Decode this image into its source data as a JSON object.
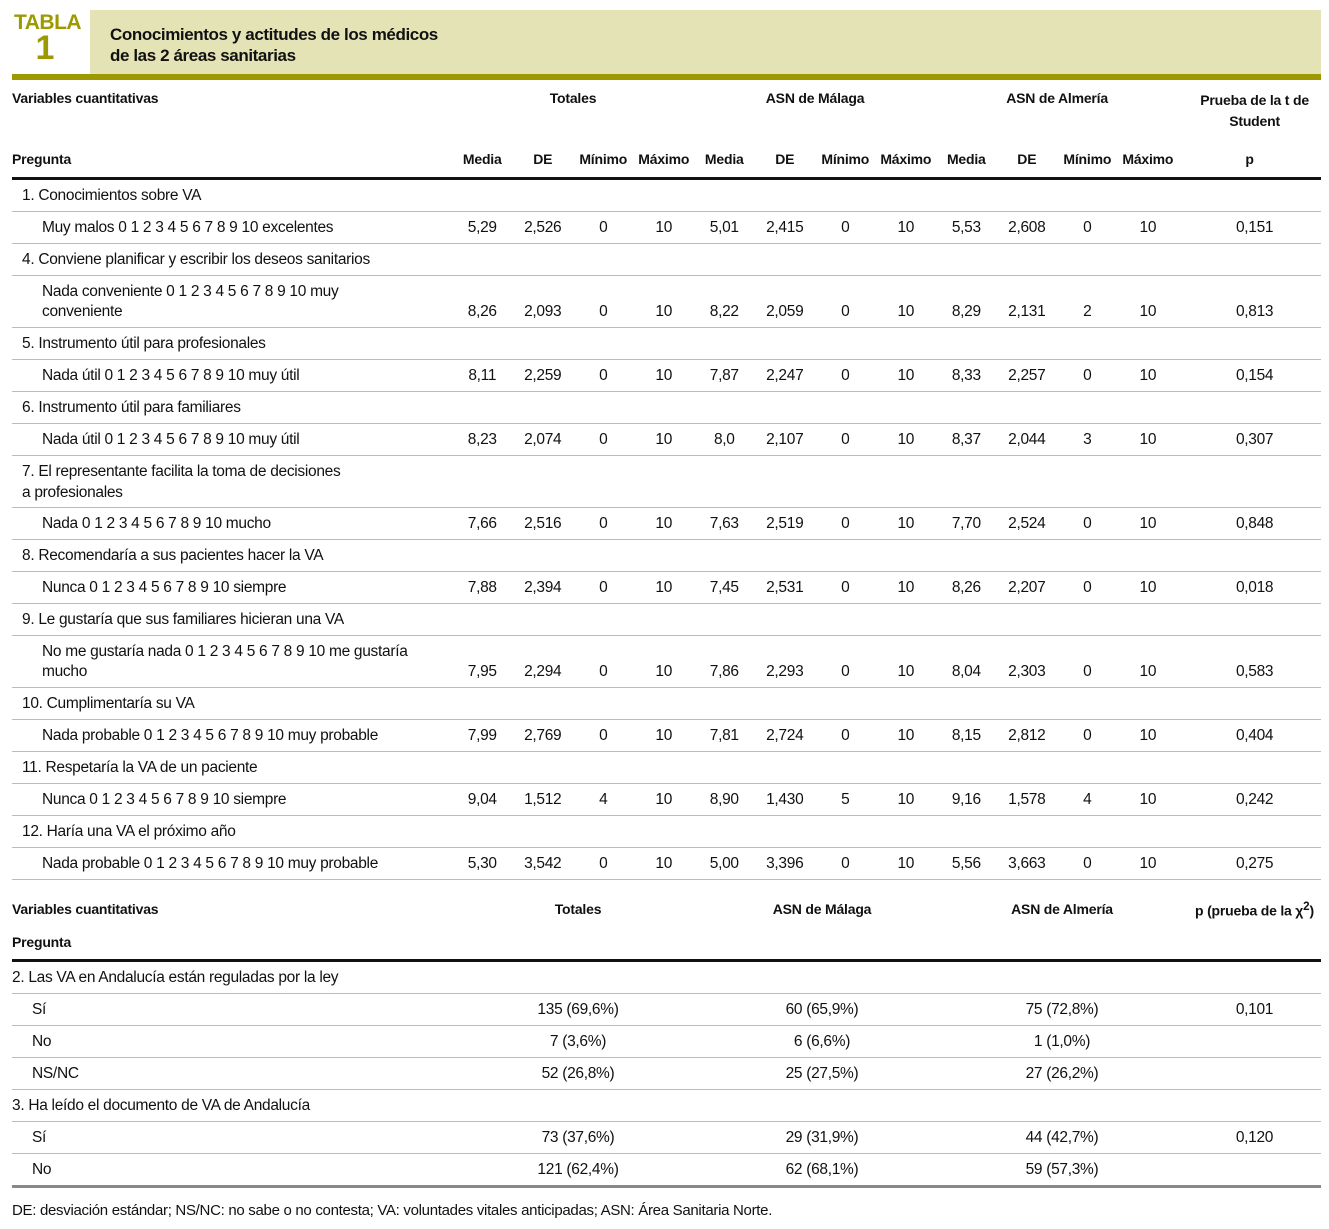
{
  "header": {
    "label": "TABLA",
    "number": "1",
    "title": "Conocimientos y actitudes de los médicos\nde las 2 áreas sanitarias"
  },
  "colors": {
    "accent": "#9c9a00",
    "band": "#e4e3b5"
  },
  "table1": {
    "section": "Variables cuantitativas",
    "groups": [
      "Totales",
      "ASN de Málaga",
      "ASN de Almería"
    ],
    "test": "Prueba de la t de Student",
    "pregunta": "Pregunta",
    "cols": [
      "Media",
      "DE",
      "Mínimo",
      "Máximo",
      "Media",
      "DE",
      "Mínimo",
      "Máximo",
      "Media",
      "DE",
      "Mínimo",
      "Máximo",
      "p"
    ],
    "rows": [
      {
        "q": "1. Conocimientos sobre VA",
        "item": "Muy malos 0 1 2 3 4 5 6 7 8 9 10 excelentes",
        "v": [
          "5,29",
          "2,526",
          "0",
          "10",
          "5,01",
          "2,415",
          "0",
          "10",
          "5,53",
          "2,608",
          "0",
          "10",
          "0,151"
        ]
      },
      {
        "q": "4. Conviene planificar y escribir los deseos sanitarios",
        "item": "Nada conveniente 0 1 2 3 4 5 6 7 8 9 10 muy\n conveniente",
        "v": [
          "8,26",
          "2,093",
          "0",
          "10",
          "8,22",
          "2,059",
          "0",
          "10",
          "8,29",
          "2,131",
          "2",
          "10",
          "0,813"
        ]
      },
      {
        "q": "5. Instrumento útil para profesionales",
        "item": "Nada útil 0 1 2 3 4 5 6 7 8 9 10 muy útil",
        "v": [
          "8,11",
          "2,259",
          "0",
          "10",
          "7,87",
          "2,247",
          "0",
          "10",
          "8,33",
          "2,257",
          "0",
          "10",
          "0,154"
        ]
      },
      {
        "q": "6. Instrumento útil para familiares",
        "item": "Nada útil 0 1 2 3 4 5 6 7 8 9 10 muy útil",
        "v": [
          "8,23",
          "2,074",
          "0",
          "10",
          "8,0",
          "2,107",
          "0",
          "10",
          "8,37",
          "2,044",
          "3",
          "10",
          "0,307"
        ]
      },
      {
        "q": "7. El representante facilita la toma de decisiones\n   a profesionales",
        "item": "Nada 0 1 2 3 4 5 6 7 8 9 10 mucho",
        "v": [
          "7,66",
          "2,516",
          "0",
          "10",
          "7,63",
          "2,519",
          "0",
          "10",
          "7,70",
          "2,524",
          "0",
          "10",
          "0,848"
        ]
      },
      {
        "q": "8. Recomendaría a sus pacientes hacer la VA",
        "item": "Nunca 0 1 2 3 4 5 6 7 8 9 10 siempre",
        "v": [
          "7,88",
          "2,394",
          "0",
          "10",
          "7,45",
          "2,531",
          "0",
          "10",
          "8,26",
          "2,207",
          "0",
          "10",
          "0,018"
        ]
      },
      {
        "q": "9. Le gustaría que sus familiares hicieran una VA",
        "item": "No me gustaría nada 0 1 2 3 4 5 6 7 8 9 10 me gustaría\nmucho",
        "v": [
          "7,95",
          "2,294",
          "0",
          "10",
          "7,86",
          "2,293",
          "0",
          "10",
          "8,04",
          "2,303",
          "0",
          "10",
          "0,583"
        ]
      },
      {
        "q": "10. Cumplimentaría su VA",
        "item": "Nada probable 0 1 2 3 4 5 6 7 8 9 10 muy probable",
        "v": [
          "7,99",
          "2,769",
          "0",
          "10",
          "7,81",
          "2,724",
          "0",
          "10",
          "8,15",
          "2,812",
          "0",
          "10",
          "0,404"
        ]
      },
      {
        "q": "11. Respetaría la VA de un paciente",
        "item": "Nunca 0 1 2 3 4 5 6 7 8 9 10 siempre",
        "v": [
          "9,04",
          "1,512",
          "4",
          "10",
          "8,90",
          "1,430",
          "5",
          "10",
          "9,16",
          "1,578",
          "4",
          "10",
          "0,242"
        ]
      },
      {
        "q": "12. Haría una VA el próximo año",
        "item": "Nada probable 0 1 2 3 4 5 6 7 8 9 10 muy probable",
        "v": [
          "5,30",
          "3,542",
          "0",
          "10",
          "5,00",
          "3,396",
          "0",
          "10",
          "5,56",
          "3,663",
          "0",
          "10",
          "0,275"
        ]
      }
    ]
  },
  "table2": {
    "section": "Variables cuantitativas",
    "groups": [
      "Totales",
      "ASN de Málaga",
      "ASN de Almería"
    ],
    "test": "p (prueba de la χ",
    "test_sup": "2",
    "test_end": ")",
    "pregunta": "Pregunta",
    "blocks": [
      {
        "q": "2. Las VA en Andalucía están reguladas por la ley",
        "rows": [
          {
            "label": "Sí",
            "v": [
              "135 (69,6%)",
              "60 (65,9%)",
              "75 (72,8%)",
              "0,101"
            ]
          },
          {
            "label": "No",
            "v": [
              "7 (3,6%)",
              "6 (6,6%)",
              "1 (1,0%)",
              ""
            ]
          },
          {
            "label": "NS/NC",
            "v": [
              "52 (26,8%)",
              "25 (27,5%)",
              "27 (26,2%)",
              ""
            ]
          }
        ]
      },
      {
        "q": "3. Ha leído el documento de VA de Andalucía",
        "rows": [
          {
            "label": "Sí",
            "v": [
              "73 (37,6%)",
              "29 (31,9%)",
              "44 (42,7%)",
              "0,120"
            ]
          },
          {
            "label": "No",
            "v": [
              "121 (62,4%)",
              "62 (68,1%)",
              "59 (57,3%)",
              ""
            ]
          }
        ]
      }
    ]
  },
  "footnote": "DE: desviación estándar; NS/NC: no sabe o no contesta; VA: voluntades vitales anticipadas; ASN: Área Sanitaria Norte."
}
